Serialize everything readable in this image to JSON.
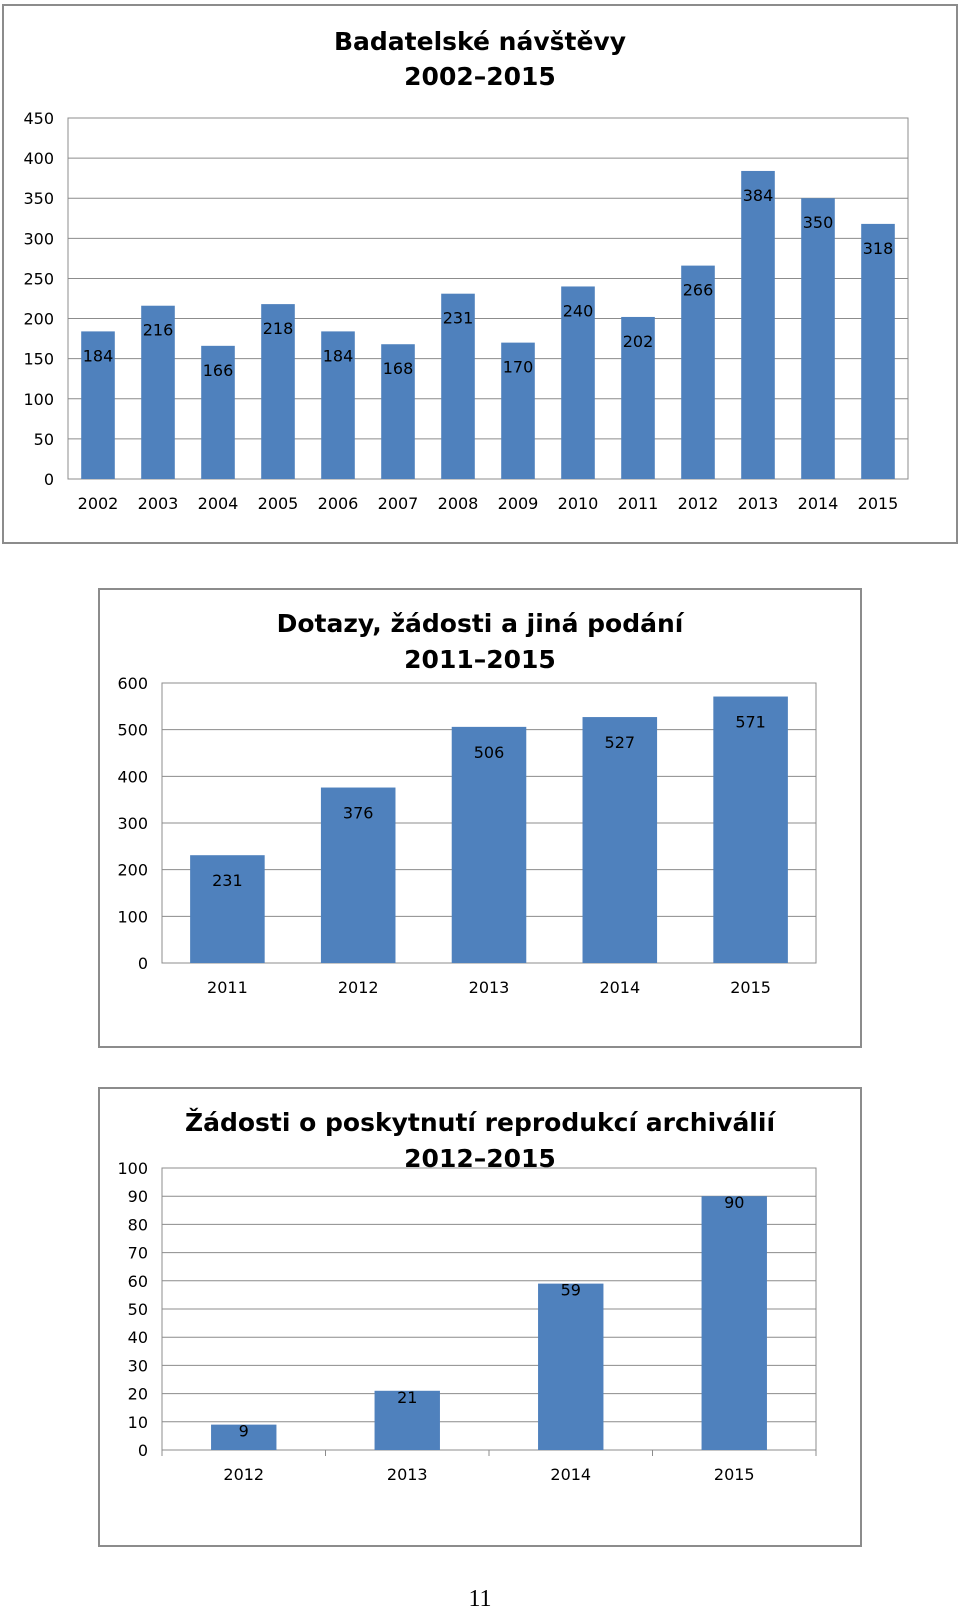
{
  "chart_data": [
    {
      "type": "bar",
      "title": "Badatelské návštěvy",
      "subtitle": "2002–2015",
      "categories": [
        "2002",
        "2003",
        "2004",
        "2005",
        "2006",
        "2007",
        "2008",
        "2009",
        "2010",
        "2011",
        "2012",
        "2013",
        "2014",
        "2015"
      ],
      "values": [
        184,
        216,
        166,
        218,
        184,
        168,
        231,
        170,
        240,
        202,
        266,
        384,
        350,
        318
      ],
      "ylim": [
        0,
        450
      ],
      "yticks": [
        0,
        50,
        100,
        150,
        200,
        250,
        300,
        350,
        400,
        450
      ],
      "xlabel": "",
      "ylabel": "",
      "grid": true,
      "data_labels": true,
      "bar_color": "#4f81bd"
    },
    {
      "type": "bar",
      "title": "Dotazy, žádosti a jiná podání",
      "subtitle": "2011–2015",
      "categories": [
        "2011",
        "2012",
        "2013",
        "2014",
        "2015"
      ],
      "values": [
        231,
        376,
        506,
        527,
        571
      ],
      "ylim": [
        0,
        600
      ],
      "yticks": [
        0,
        100,
        200,
        300,
        400,
        500,
        600
      ],
      "xlabel": "",
      "ylabel": "",
      "grid": true,
      "data_labels": true,
      "bar_color": "#4f81bd"
    },
    {
      "type": "bar",
      "title": "Žádosti o poskytnutí reprodukcí archiválií",
      "subtitle": "2012–2015",
      "categories": [
        "2012",
        "2013",
        "2014",
        "2015"
      ],
      "values": [
        9,
        21,
        59,
        90
      ],
      "ylim": [
        0,
        100
      ],
      "yticks": [
        0,
        10,
        20,
        30,
        40,
        50,
        60,
        70,
        80,
        90,
        100
      ],
      "xlabel": "",
      "ylabel": "",
      "grid": true,
      "data_labels": true,
      "bar_color": "#4f81bd"
    }
  ],
  "page": {
    "number": "11"
  }
}
